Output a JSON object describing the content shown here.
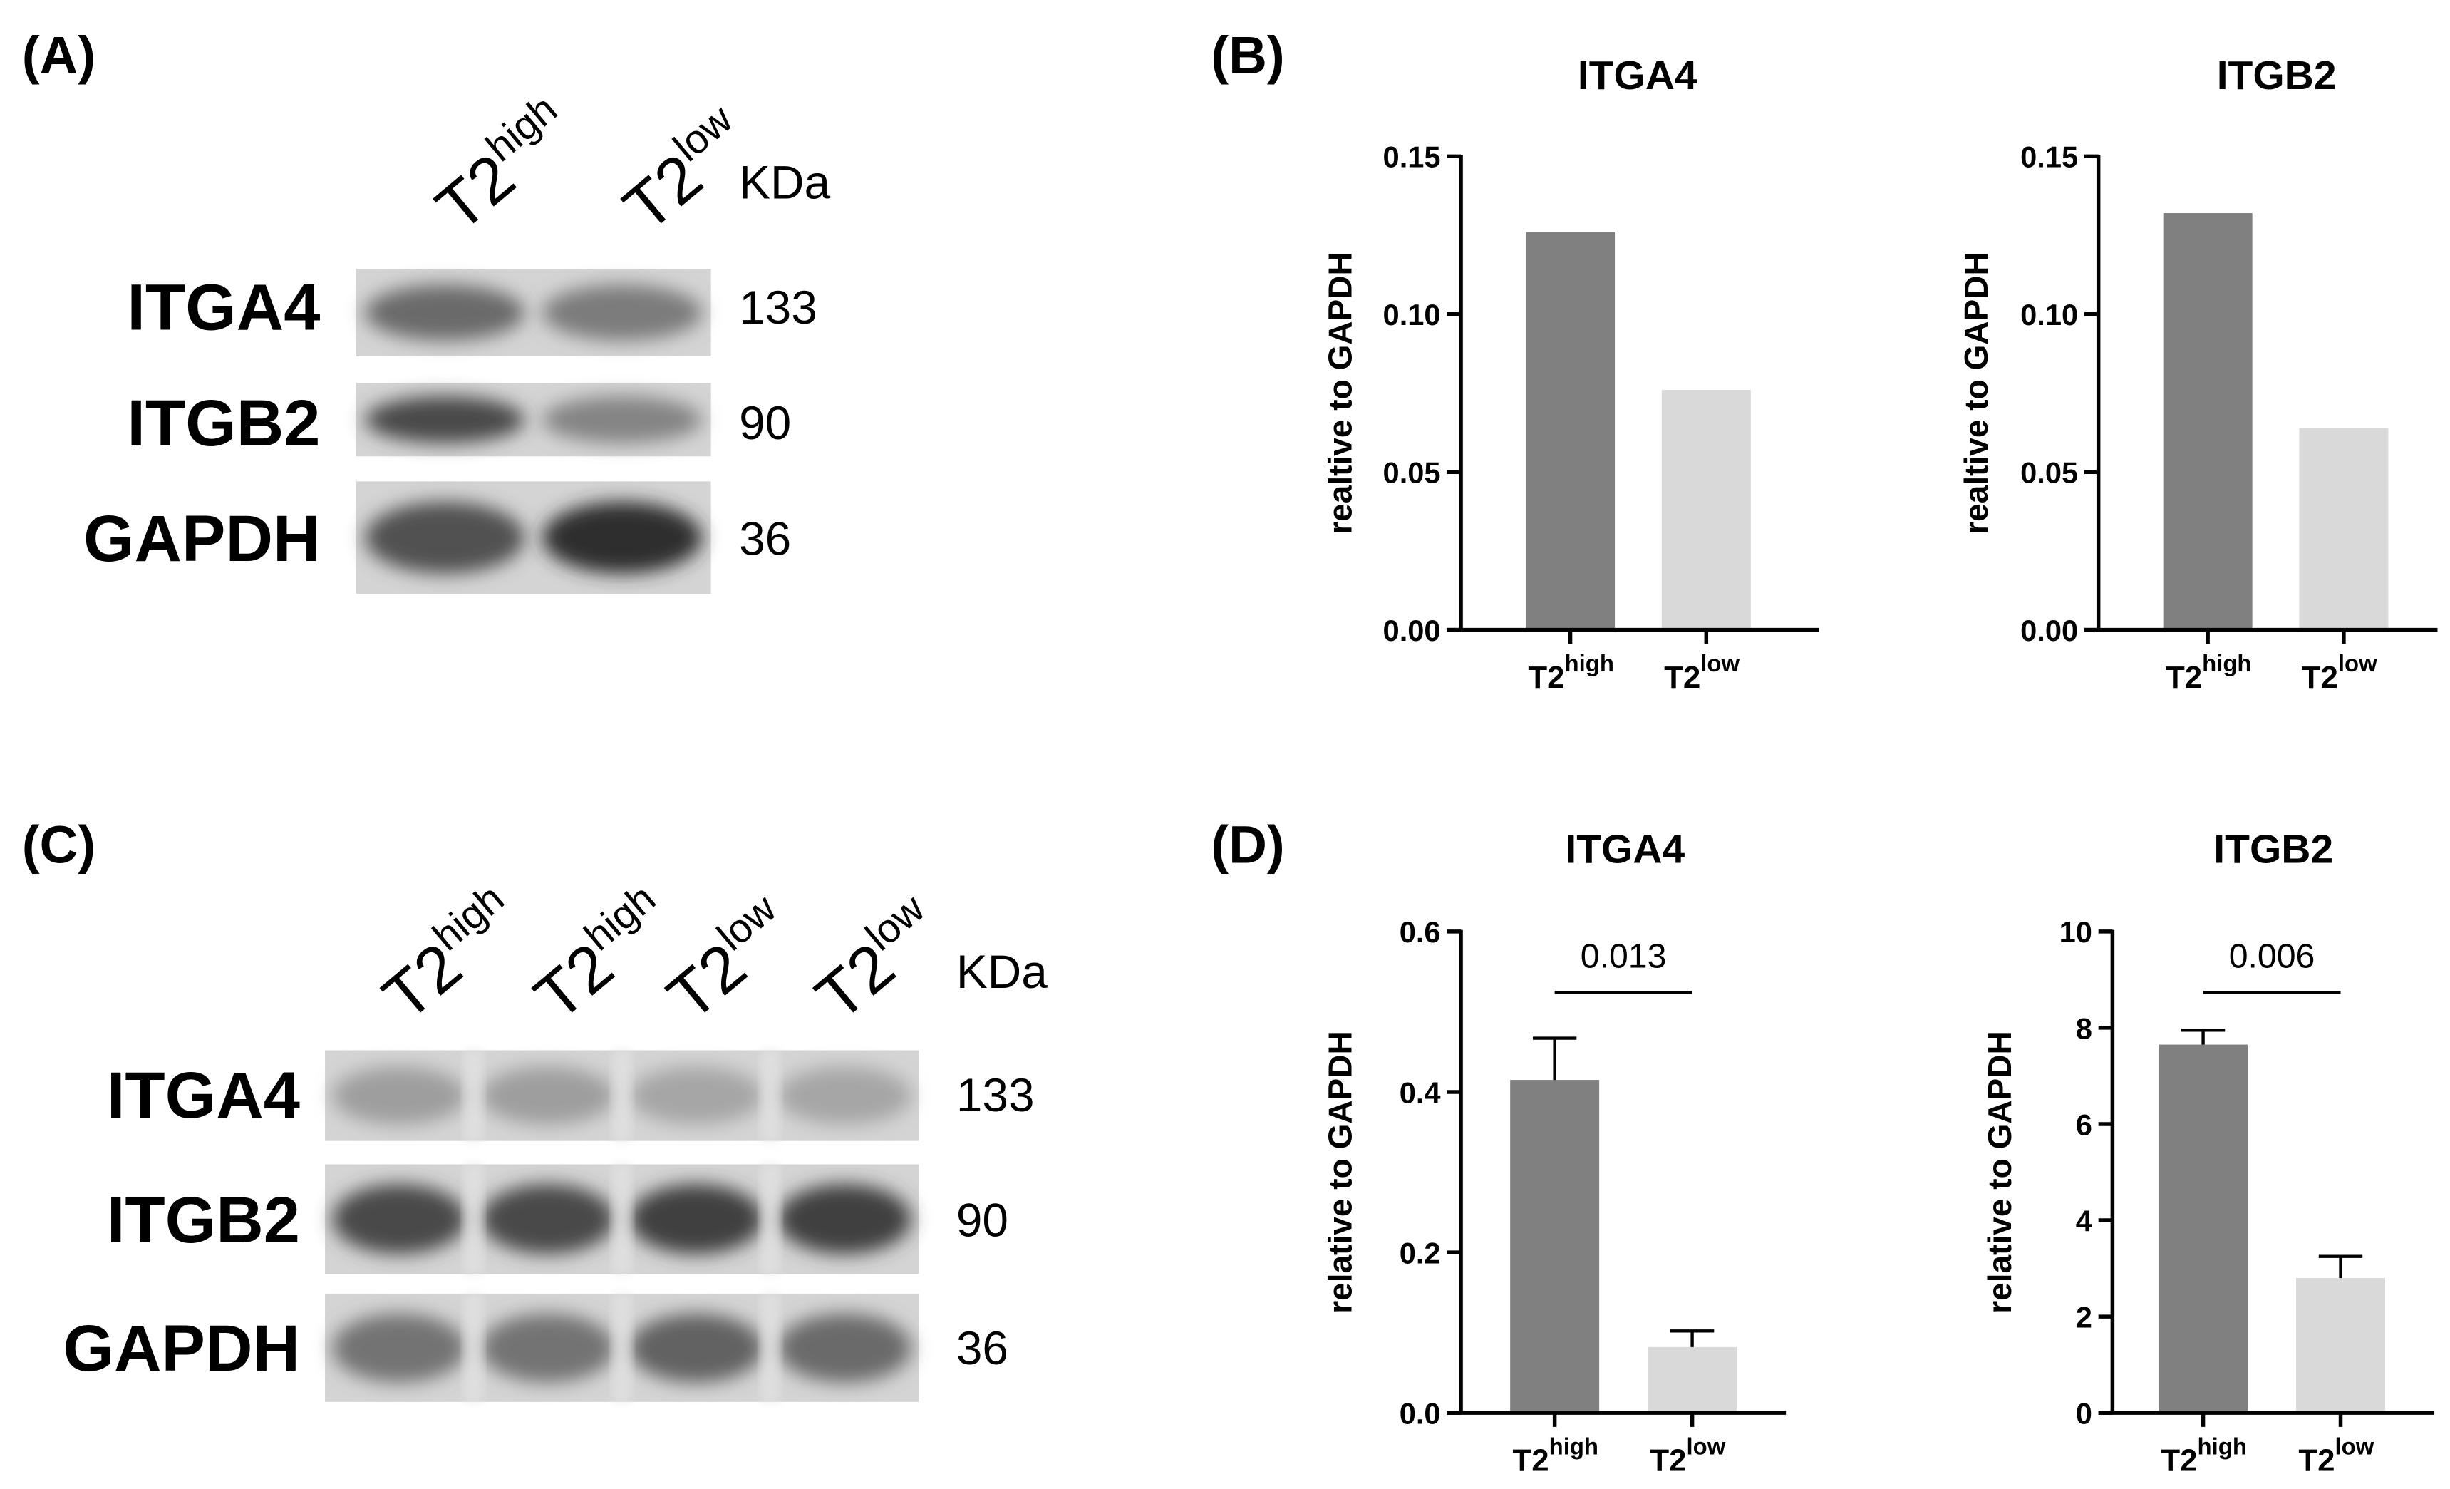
{
  "blots": [
    {
      "panel_label": "(A)",
      "lanes": [
        {
          "base": "T2",
          "sup": "high"
        },
        {
          "base": "T2",
          "sup": "low"
        }
      ],
      "kda_header": "KDa",
      "rows": [
        {
          "protein": "ITGA4",
          "kda": "133"
        },
        {
          "protein": "ITGB2",
          "kda": "90"
        },
        {
          "protein": "GAPDH",
          "kda": "36"
        }
      ]
    },
    {
      "panel_label": "(C)",
      "lanes": [
        {
          "base": "T2",
          "sup": "high"
        },
        {
          "base": "T2",
          "sup": "high"
        },
        {
          "base": "T2",
          "sup": "low"
        },
        {
          "base": "T2",
          "sup": "low"
        }
      ],
      "kda_header": "KDa",
      "rows": [
        {
          "protein": "ITGA4",
          "kda": "133"
        },
        {
          "protein": "ITGB2",
          "kda": "90"
        },
        {
          "protein": "GAPDH",
          "kda": "36"
        }
      ]
    }
  ],
  "chart_data": [
    {
      "type": "bar",
      "panel_label": "(B)",
      "title": "ITGA4",
      "y_label": "realtive to GAPDH",
      "categories": [
        {
          "base": "T2",
          "sup": "high"
        },
        {
          "base": "T2",
          "sup": "low"
        }
      ],
      "values": [
        0.126,
        0.076
      ],
      "colors": [
        "#808080",
        "#d9d9d9"
      ],
      "ylim": [
        0,
        0.15
      ],
      "yticks": [
        {
          "value": 0,
          "label": "0.00"
        },
        {
          "value": 0.05,
          "label": "0.05"
        },
        {
          "value": 0.1,
          "label": "0.10"
        },
        {
          "value": 0.15,
          "label": "0.15"
        }
      ]
    },
    {
      "type": "bar",
      "title": "ITGB2",
      "y_label": "realtive to GAPDH",
      "categories": [
        {
          "base": "T2",
          "sup": "high"
        },
        {
          "base": "T2",
          "sup": "low"
        }
      ],
      "values": [
        0.132,
        0.064
      ],
      "colors": [
        "#808080",
        "#d9d9d9"
      ],
      "ylim": [
        0,
        0.15
      ],
      "yticks": [
        {
          "value": 0,
          "label": "0.00"
        },
        {
          "value": 0.05,
          "label": "0.05"
        },
        {
          "value": 0.1,
          "label": "0.10"
        },
        {
          "value": 0.15,
          "label": "0.15"
        }
      ]
    },
    {
      "type": "bar",
      "panel_label": "(D)",
      "title": "ITGA4",
      "y_label": "relative to GAPDH",
      "categories": [
        {
          "base": "T2",
          "sup": "high"
        },
        {
          "base": "T2",
          "sup": "low"
        }
      ],
      "values": [
        0.415,
        0.082
      ],
      "errors": [
        0.052,
        0.02
      ],
      "colors": [
        "#808080",
        "#d9d9d9"
      ],
      "ylim": [
        0,
        0.6
      ],
      "yticks": [
        {
          "value": 0,
          "label": "0.0"
        },
        0.2,
        0.4,
        0.6
      ],
      "annotation": "0.013"
    },
    {
      "type": "bar",
      "title": "ITGB2",
      "y_label": "relative to GAPDH",
      "categories": [
        {
          "base": "T2",
          "sup": "high"
        },
        {
          "base": "T2",
          "sup": "low"
        }
      ],
      "values": [
        7.65,
        2.8
      ],
      "errors": [
        0.3,
        0.45
      ],
      "colors": [
        "#808080",
        "#d9d9d9"
      ],
      "ylim": [
        0,
        10
      ],
      "yticks": [
        0,
        2,
        4,
        6,
        8,
        10
      ],
      "annotation": "0.006"
    }
  ]
}
